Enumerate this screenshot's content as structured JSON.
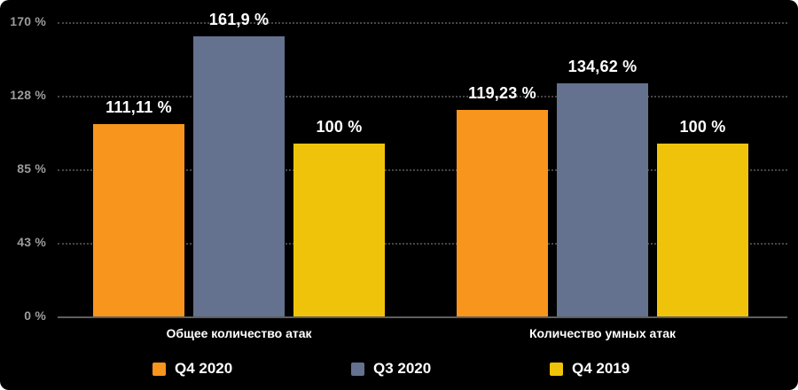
{
  "chart_data": {
    "type": "bar",
    "title": "",
    "xlabel": "",
    "ylabel": "",
    "ylim": [
      0,
      170
    ],
    "grid": "horizontal-dotted",
    "legend_position": "bottom",
    "categories": [
      "Общее количество атак",
      "Количество умных атак"
    ],
    "series": [
      {
        "name": "Q4 2020",
        "color": "#F8951D",
        "values": [
          111.11,
          119.23
        ]
      },
      {
        "name": "Q3 2020",
        "color": "#64728F",
        "values": [
          161.9,
          134.62
        ]
      },
      {
        "name": "Q4 2019",
        "color": "#F0C30B",
        "values": [
          100,
          100
        ]
      }
    ],
    "value_labels": [
      [
        "111,11 %",
        "161,9 %",
        "100 %"
      ],
      [
        "119,23 %",
        "134,62 %",
        "100 %"
      ]
    ],
    "y_ticks": [
      {
        "label": "0 %",
        "value": 0
      },
      {
        "label": "43 %",
        "value": 42.5
      },
      {
        "label": "85 %",
        "value": 85
      },
      {
        "label": "128 %",
        "value": 127.5
      },
      {
        "label": "170 %",
        "value": 170
      }
    ]
  },
  "colors": {
    "background": "#000000",
    "gridline": "#464646",
    "baseline": "#5E5E5E",
    "tick_label": "#9B9B9B",
    "value_label": "#FFFFFF",
    "category_label": "#FFFFFF",
    "legend_text": "#FFFFFF"
  }
}
